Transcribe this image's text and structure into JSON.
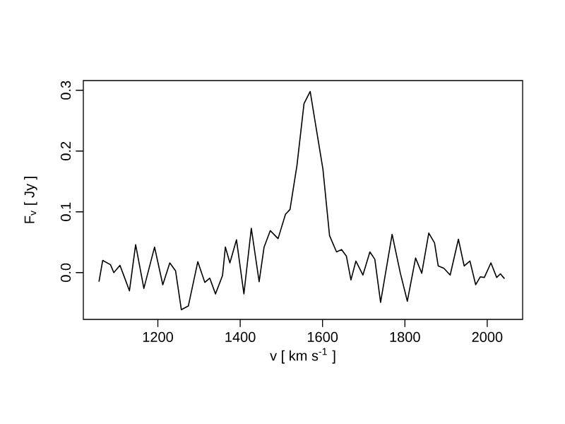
{
  "chart_data": {
    "type": "line",
    "xlabel": "v [ km s$^{-1}$ ]",
    "ylabel": "F$_{v}$ [ Jy ]",
    "x": [
      1057,
      1066,
      1085,
      1093,
      1108,
      1119,
      1131,
      1146,
      1166,
      1192,
      1212,
      1229,
      1243,
      1257,
      1274,
      1297,
      1314,
      1326,
      1340,
      1357,
      1364,
      1375,
      1391,
      1409,
      1427,
      1446,
      1458,
      1473,
      1492,
      1510,
      1521,
      1538,
      1555,
      1570,
      1584,
      1601,
      1617,
      1634,
      1646,
      1658,
      1669,
      1681,
      1698,
      1715,
      1727,
      1741,
      1769,
      1789,
      1806,
      1826,
      1841,
      1858,
      1872,
      1881,
      1895,
      1910,
      1930,
      1944,
      1958,
      1972,
      1983,
      1993,
      2009,
      2023,
      2032,
      2042
    ],
    "series": [
      {
        "color": "#000000",
        "values": [
          -0.015,
          0.02,
          0.013,
          0.0,
          0.012,
          -0.008,
          -0.03,
          0.046,
          -0.026,
          0.042,
          -0.02,
          0.016,
          0.003,
          -0.061,
          -0.055,
          0.018,
          -0.016,
          -0.009,
          -0.035,
          -0.005,
          0.042,
          0.016,
          0.054,
          -0.035,
          0.073,
          -0.015,
          0.042,
          0.069,
          0.056,
          0.096,
          0.104,
          0.177,
          0.278,
          0.298,
          0.24,
          0.17,
          0.061,
          0.034,
          0.038,
          0.027,
          -0.012,
          0.019,
          -0.004,
          0.034,
          0.022,
          -0.049,
          0.063,
          -0.001,
          -0.047,
          0.024,
          -0.001,
          0.065,
          0.049,
          0.011,
          0.007,
          -0.004,
          0.055,
          0.011,
          0.019,
          -0.02,
          -0.007,
          -0.008,
          0.016,
          -0.008,
          -0.002,
          -0.01
        ]
      }
    ],
    "xlim": [
      1019,
      2086
    ],
    "ylim": [
      -0.077,
      0.316
    ],
    "xticks": [
      1200,
      1400,
      1600,
      1800,
      2000
    ],
    "yticks": [
      {
        "value": 0,
        "label": "0.0"
      },
      0.1,
      0.2,
      0.3
    ],
    "grid": false,
    "marker": "none",
    "line_style": "solid"
  }
}
